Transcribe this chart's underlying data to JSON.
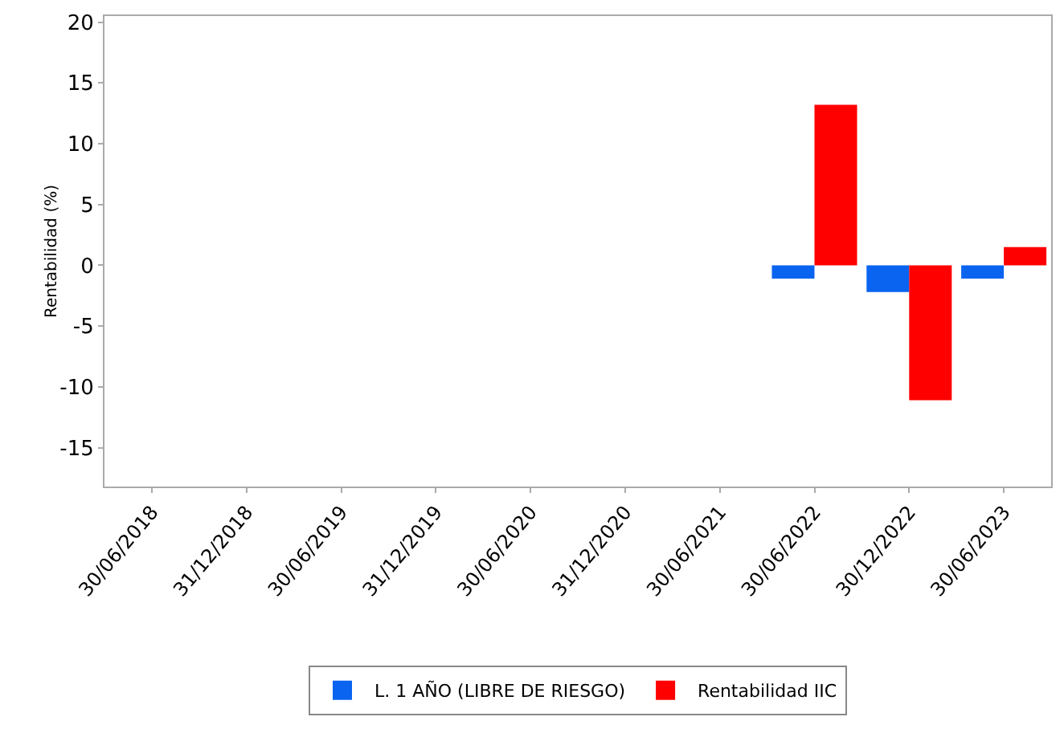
{
  "chart_data": {
    "type": "bar",
    "ylabel": "Rentabilidad (%)",
    "categories": [
      "30/06/2018",
      "31/12/2018",
      "30/06/2019",
      "31/12/2019",
      "30/06/2020",
      "31/12/2020",
      "30/06/2021",
      "30/06/2022",
      "30/12/2022",
      "30/06/2023"
    ],
    "series": [
      {
        "name": "L. 1 AÑO (LIBRE DE RIESGO)",
        "color": "#0a64f0",
        "values": [
          null,
          null,
          null,
          null,
          null,
          null,
          null,
          -1.1,
          -2.2,
          -1.1
        ]
      },
      {
        "name": "Rentabilidad IIC",
        "color": "#ff0000",
        "values": [
          null,
          null,
          null,
          null,
          null,
          null,
          null,
          13.2,
          -11.1,
          1.5
        ]
      }
    ],
    "ylim": [
      -18.2,
      20.5
    ],
    "yticks": [
      -15,
      -10,
      -5,
      0,
      5,
      10,
      15,
      20
    ],
    "grid": false,
    "legend": "bottom"
  }
}
